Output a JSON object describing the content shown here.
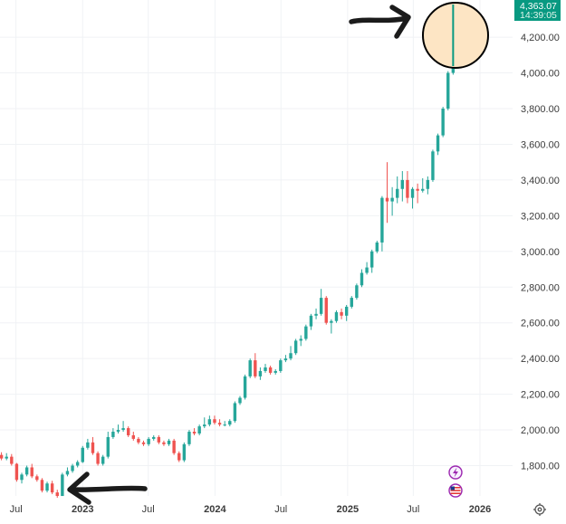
{
  "chart_data": {
    "type": "candlestick",
    "title": "",
    "xlabel": "",
    "ylabel": "",
    "ylim": [
      1600,
      4400
    ],
    "y_ticks": [
      "1,800.00",
      "2,000.00",
      "2,200.00",
      "2,400.00",
      "2,600.00",
      "2,800.00",
      "3,000.00",
      "3,200.00",
      "3,400.00",
      "3,600.00",
      "3,800.00",
      "4,000.00",
      "4,200.00"
    ],
    "x_ticks": [
      {
        "label": "Jul",
        "date": "2022-07-01",
        "bold": false
      },
      {
        "label": "2023",
        "date": "2023-01-01",
        "bold": true
      },
      {
        "label": "Jul",
        "date": "2023-07-01",
        "bold": false
      },
      {
        "label": "2024",
        "date": "2024-01-01",
        "bold": true
      },
      {
        "label": "Jul",
        "date": "2024-07-01",
        "bold": false
      },
      {
        "label": "2025",
        "date": "2025-01-01",
        "bold": true
      },
      {
        "label": "Jul",
        "date": "2025-07-01",
        "bold": false
      },
      {
        "label": "2026",
        "date": "2026-01-01",
        "bold": true
      }
    ],
    "x_range": [
      "2022-05-18",
      "2026-03-12"
    ],
    "grid": true,
    "up_color": "#26a69a",
    "down_color": "#ef5350",
    "series": [
      {
        "x": [
          "2022-05-22",
          "2022-06-05",
          "2022-06-19",
          "2022-07-03",
          "2022-07-17",
          "2022-07-31",
          "2022-08-14",
          "2022-08-28",
          "2022-09-11",
          "2022-09-25",
          "2022-10-09",
          "2022-10-23",
          "2022-11-06",
          "2022-11-20",
          "2022-12-04",
          "2022-12-18",
          "2023-01-01",
          "2023-01-15",
          "2023-01-29",
          "2023-02-12",
          "2023-02-26",
          "2023-03-12",
          "2023-03-26",
          "2023-04-09",
          "2023-04-23",
          "2023-05-07",
          "2023-05-21",
          "2023-06-04",
          "2023-06-18",
          "2023-07-02",
          "2023-07-16",
          "2023-07-30",
          "2023-08-13",
          "2023-08-27",
          "2023-09-10",
          "2023-09-24",
          "2023-10-08",
          "2023-10-22",
          "2023-11-05",
          "2023-11-19",
          "2023-12-03",
          "2023-12-17",
          "2023-12-31",
          "2024-01-14",
          "2024-01-28",
          "2024-02-11",
          "2024-02-25",
          "2024-03-10",
          "2024-03-24",
          "2024-04-07",
          "2024-04-21",
          "2024-05-05",
          "2024-05-19",
          "2024-06-02",
          "2024-06-16",
          "2024-06-30",
          "2024-07-14",
          "2024-07-28",
          "2024-08-11",
          "2024-08-25",
          "2024-09-08",
          "2024-09-22",
          "2024-10-06",
          "2024-10-20",
          "2024-11-03",
          "2024-11-17",
          "2024-12-01",
          "2024-12-15",
          "2024-12-29",
          "2025-01-12",
          "2025-01-26",
          "2025-02-09",
          "2025-02-23",
          "2025-03-09",
          "2025-03-23",
          "2025-04-06",
          "2025-04-20",
          "2025-05-04",
          "2025-05-18",
          "2025-06-01",
          "2025-06-15",
          "2025-06-29",
          "2025-07-13",
          "2025-07-27",
          "2025-08-10",
          "2025-08-24",
          "2025-09-07",
          "2025-09-21",
          "2025-10-05",
          "2025-10-19"
        ],
        "open": [
          1860,
          1840,
          1850,
          1810,
          1720,
          1750,
          1790,
          1740,
          1720,
          1660,
          1700,
          1650,
          1630,
          1750,
          1770,
          1800,
          1820,
          1900,
          1930,
          1870,
          1810,
          1850,
          1960,
          1990,
          2000,
          2010,
          1970,
          1950,
          1930,
          1920,
          1950,
          1960,
          1930,
          1920,
          1940,
          1870,
          1830,
          1920,
          1990,
          1980,
          2020,
          2030,
          2060,
          2040,
          2030,
          2030,
          2050,
          2150,
          2180,
          2300,
          2390,
          2300,
          2330,
          2350,
          2320,
          2330,
          2390,
          2400,
          2430,
          2500,
          2510,
          2580,
          2640,
          2650,
          2740,
          2600,
          2610,
          2660,
          2640,
          2690,
          2740,
          2810,
          2880,
          2910,
          3000,
          3050,
          3300,
          3280,
          3300,
          3350,
          3400,
          3300,
          3350,
          3340,
          3350,
          3400,
          3560,
          3650,
          3800,
          4000
        ],
        "close": [
          1840,
          1850,
          1810,
          1720,
          1750,
          1790,
          1740,
          1720,
          1660,
          1700,
          1650,
          1630,
          1750,
          1770,
          1800,
          1820,
          1900,
          1930,
          1870,
          1810,
          1850,
          1960,
          1990,
          2000,
          2010,
          1970,
          1950,
          1930,
          1920,
          1950,
          1960,
          1930,
          1920,
          1940,
          1870,
          1830,
          1920,
          1990,
          1980,
          2020,
          2030,
          2060,
          2040,
          2030,
          2030,
          2050,
          2150,
          2180,
          2300,
          2390,
          2300,
          2330,
          2350,
          2320,
          2330,
          2390,
          2400,
          2430,
          2500,
          2510,
          2580,
          2640,
          2650,
          2740,
          2600,
          2610,
          2660,
          2640,
          2690,
          2740,
          2810,
          2880,
          2910,
          3000,
          3050,
          3300,
          3280,
          3300,
          3350,
          3400,
          3300,
          3350,
          3340,
          3350,
          3400,
          3560,
          3650,
          3800,
          4000,
          4363
        ],
        "high": [
          1875,
          1870,
          1865,
          1815,
          1760,
          1800,
          1810,
          1750,
          1730,
          1710,
          1715,
          1665,
          1760,
          1790,
          1810,
          1830,
          1910,
          1950,
          1960,
          1880,
          1860,
          1990,
          2010,
          2030,
          2050,
          2020,
          1990,
          1960,
          1940,
          1960,
          1970,
          1970,
          1940,
          1950,
          1950,
          1880,
          1930,
          2000,
          2010,
          2030,
          2070,
          2080,
          2080,
          2060,
          2050,
          2060,
          2160,
          2190,
          2310,
          2400,
          2430,
          2350,
          2370,
          2360,
          2340,
          2400,
          2420,
          2470,
          2510,
          2530,
          2590,
          2650,
          2680,
          2790,
          2750,
          2620,
          2670,
          2680,
          2700,
          2750,
          2820,
          2900,
          2940,
          3010,
          3060,
          3310,
          3500,
          3360,
          3420,
          3450,
          3450,
          3360,
          3380,
          3410,
          3420,
          3570,
          3660,
          3810,
          4010,
          4380
        ],
        "low": [
          1830,
          1830,
          1800,
          1710,
          1700,
          1740,
          1730,
          1710,
          1650,
          1650,
          1640,
          1620,
          1630,
          1740,
          1760,
          1790,
          1815,
          1890,
          1860,
          1800,
          1800,
          1840,
          1950,
          1980,
          1990,
          1960,
          1940,
          1920,
          1910,
          1910,
          1940,
          1920,
          1910,
          1910,
          1860,
          1820,
          1820,
          1910,
          1970,
          1970,
          2010,
          2020,
          2030,
          2020,
          2020,
          2020,
          2040,
          2140,
          2170,
          2290,
          2290,
          2280,
          2320,
          2310,
          2310,
          2320,
          2380,
          2390,
          2420,
          2470,
          2500,
          2560,
          2620,
          2640,
          2590,
          2540,
          2600,
          2620,
          2610,
          2680,
          2730,
          2800,
          2870,
          2880,
          2990,
          3000,
          3160,
          3200,
          3270,
          3280,
          3270,
          3240,
          3270,
          3330,
          3320,
          3390,
          3540,
          3640,
          3790,
          3990
        ]
      }
    ],
    "last_price": "4,363.07",
    "countdown": "14:39:05",
    "accent_color": "#089981",
    "annotations": [
      {
        "kind": "hand-drawn-arrow",
        "points_to": "low-late-2022"
      },
      {
        "kind": "hand-drawn-arrow",
        "points_to": "latest-high"
      },
      {
        "kind": "highlight-circle",
        "fill": "#fde5c4",
        "around": "latest-high"
      }
    ],
    "icons": [
      "lightning-icon",
      "us-flag-icon",
      "gear-icon"
    ]
  }
}
